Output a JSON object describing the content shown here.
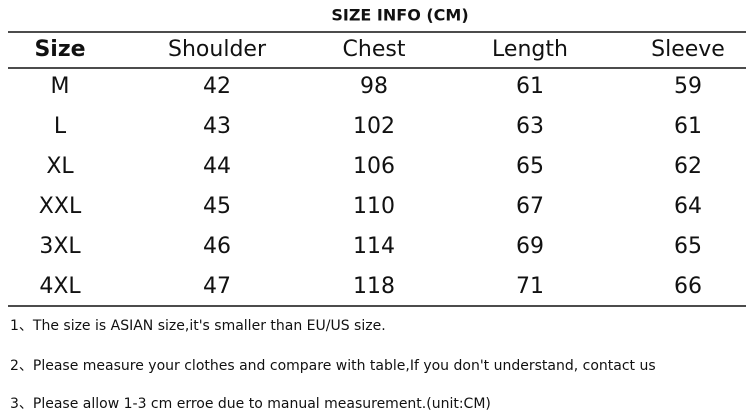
{
  "header": {
    "title": "SIZE INFO (CM)"
  },
  "table": {
    "columns": [
      "Size",
      "Shoulder",
      "Chest",
      "Length",
      "Sleeve"
    ],
    "rows": [
      [
        "M",
        42,
        98,
        61,
        59
      ],
      [
        "L",
        43,
        102,
        63,
        61
      ],
      [
        "XL",
        44,
        106,
        65,
        62
      ],
      [
        "XXL",
        45,
        110,
        67,
        64
      ],
      [
        "3XL",
        46,
        114,
        69,
        65
      ],
      [
        "4XL",
        47,
        118,
        71,
        66
      ]
    ]
  },
  "notes": [
    "1、The size is ASIAN size,it's smaller than EU/US size.",
    "2、Please measure your clothes and compare with table,If you don't understand, contact us",
    "3、Please allow 1-3 cm erroe due to manual measurement.(unit:CM)"
  ]
}
